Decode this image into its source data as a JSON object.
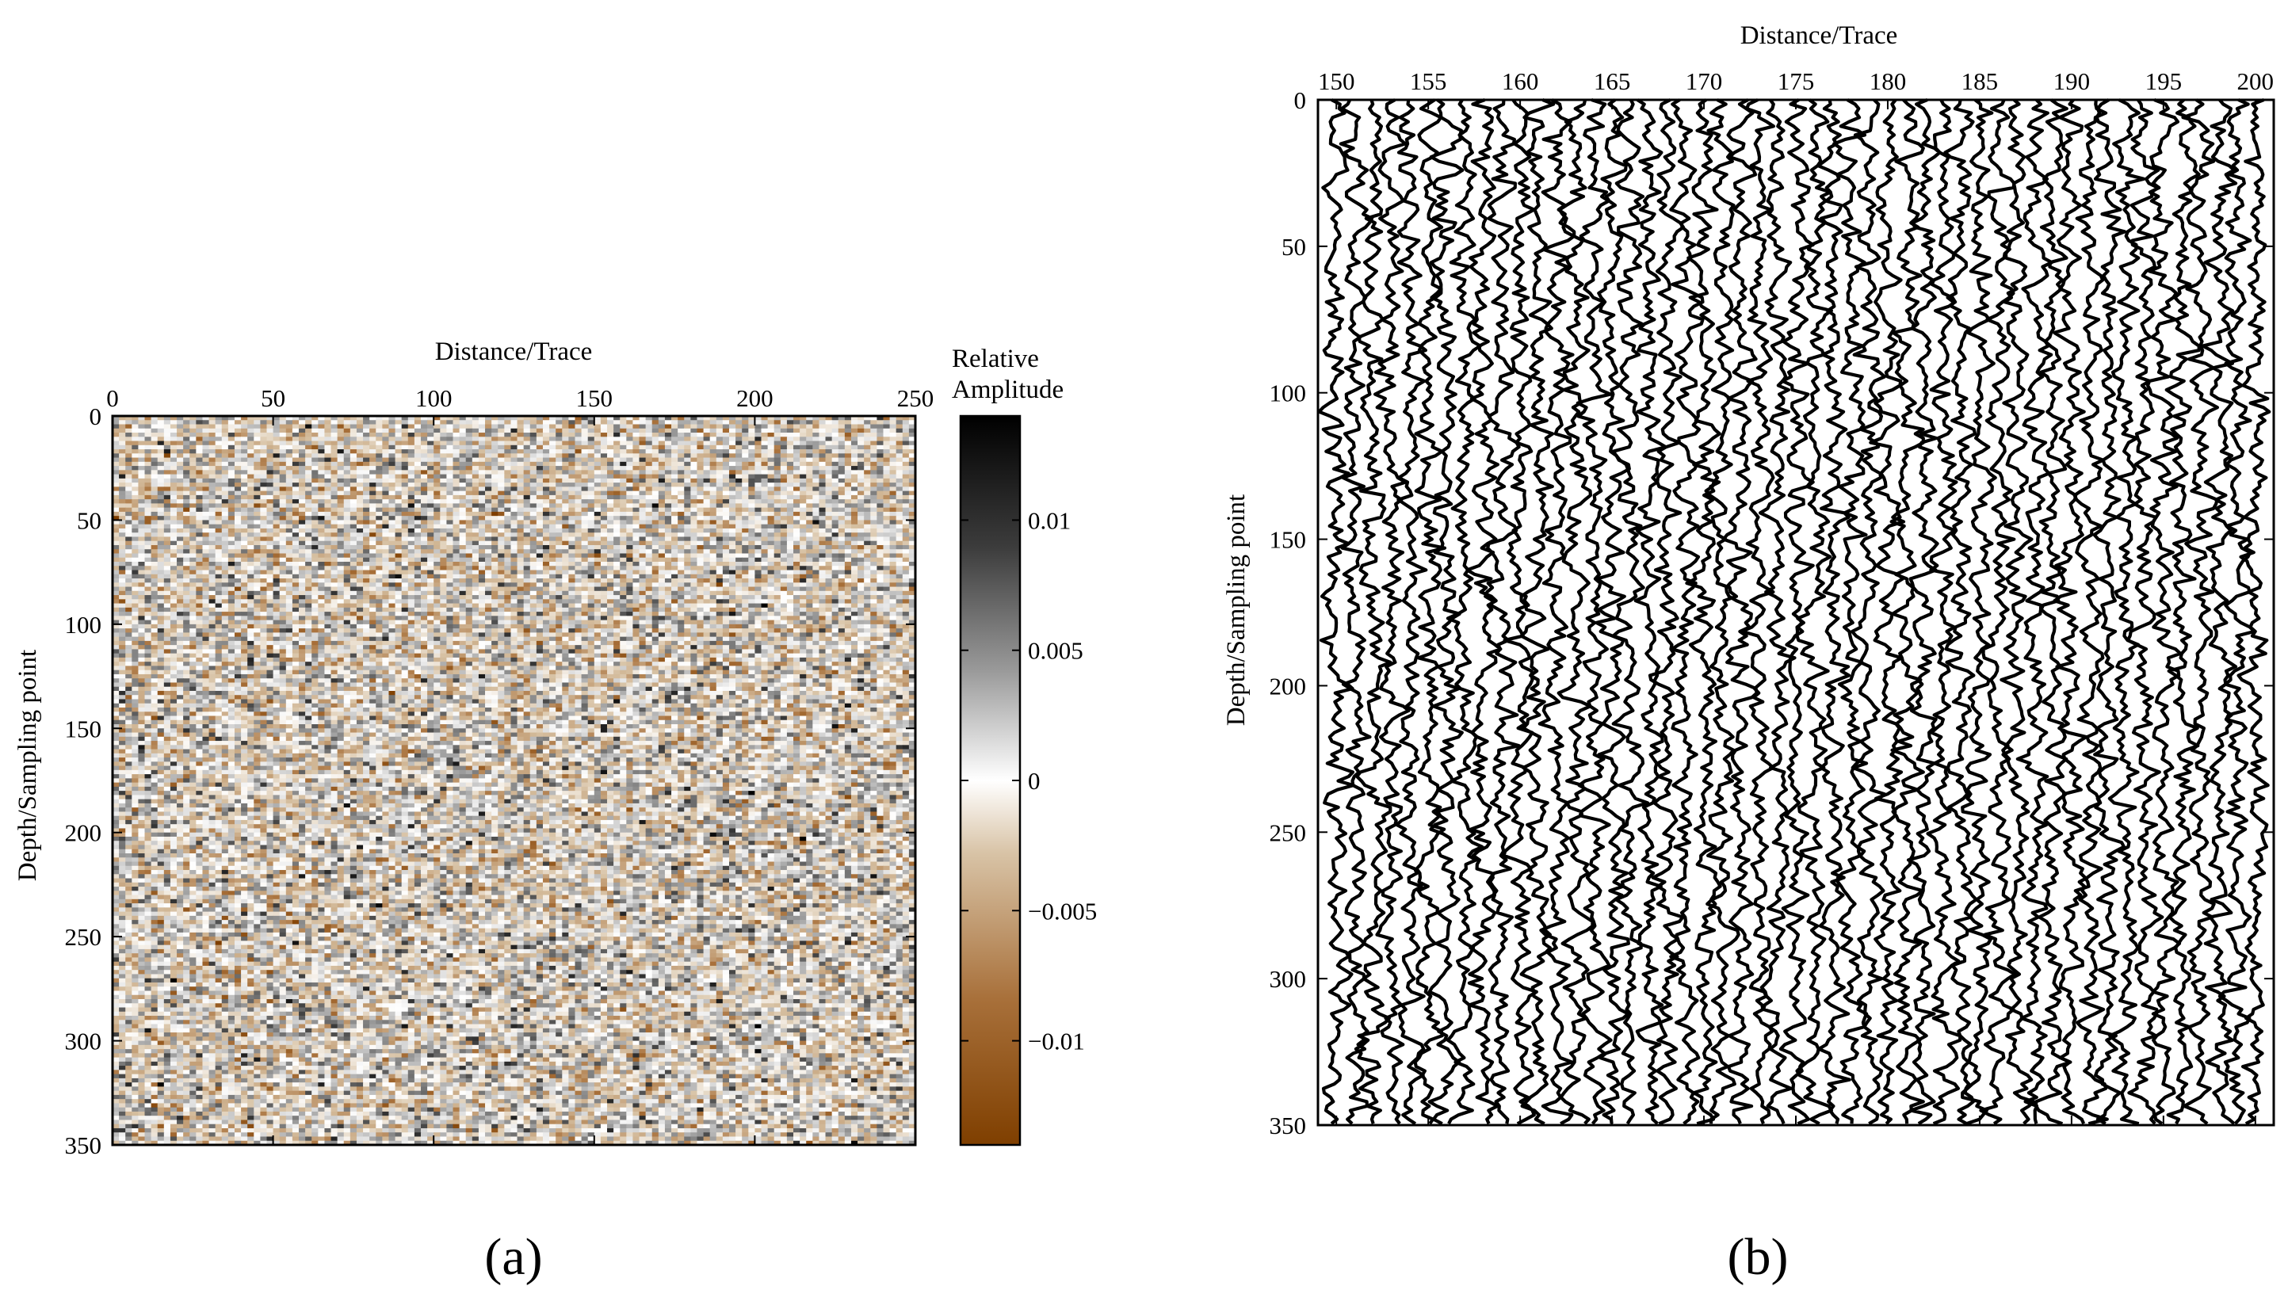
{
  "colors": {
    "colormap_negative": "#7f3f00",
    "colormap_mid_negative": "#d8c3a6",
    "colormap_zero": "#ffffff",
    "colormap_mid_positive": "#9a9a9a",
    "colormap_positive": "#000000",
    "wiggle_line": "#000000"
  },
  "chart_data": [
    {
      "type": "heatmap",
      "panel_label": "(a)",
      "xlabel": "Distance/Trace",
      "ylabel": "Depth/Sampling point",
      "x_ticks": [
        "0",
        "50",
        "100",
        "150",
        "200",
        "250"
      ],
      "y_ticks": [
        "0",
        "50",
        "100",
        "150",
        "200",
        "250",
        "300",
        "350"
      ],
      "xlim": [
        0,
        250
      ],
      "ylim": [
        0,
        350
      ],
      "x_axis_position": "top",
      "y_axis_inverted": true,
      "data_description": "random noise field",
      "amplitude_range": [
        -0.014,
        0.014
      ],
      "colorbar": {
        "title_lines": [
          "Relative",
          "Amplitude"
        ],
        "ticks": [
          "0.01",
          "0.005",
          "0",
          "−0.005",
          "−0.01"
        ],
        "tick_values": [
          0.01,
          0.005,
          0,
          -0.005,
          -0.01
        ],
        "range": [
          -0.014,
          0.014
        ]
      }
    },
    {
      "type": "line",
      "subtype": "seismic-wiggle",
      "panel_label": "(b)",
      "xlabel": "Distance/Trace",
      "ylabel": "Depth/Sampling point",
      "x_ticks": [
        "150",
        "155",
        "160",
        "165",
        "170",
        "175",
        "180",
        "185",
        "190",
        "195",
        "200"
      ],
      "y_ticks": [
        "0",
        "50",
        "100",
        "150",
        "200",
        "250",
        "300",
        "350"
      ],
      "xlim": [
        149,
        201
      ],
      "ylim": [
        0,
        350
      ],
      "x_axis_position": "top",
      "y_axis_inverted": true,
      "trace_range": [
        150,
        200
      ],
      "data_description": "random noise traces"
    }
  ]
}
